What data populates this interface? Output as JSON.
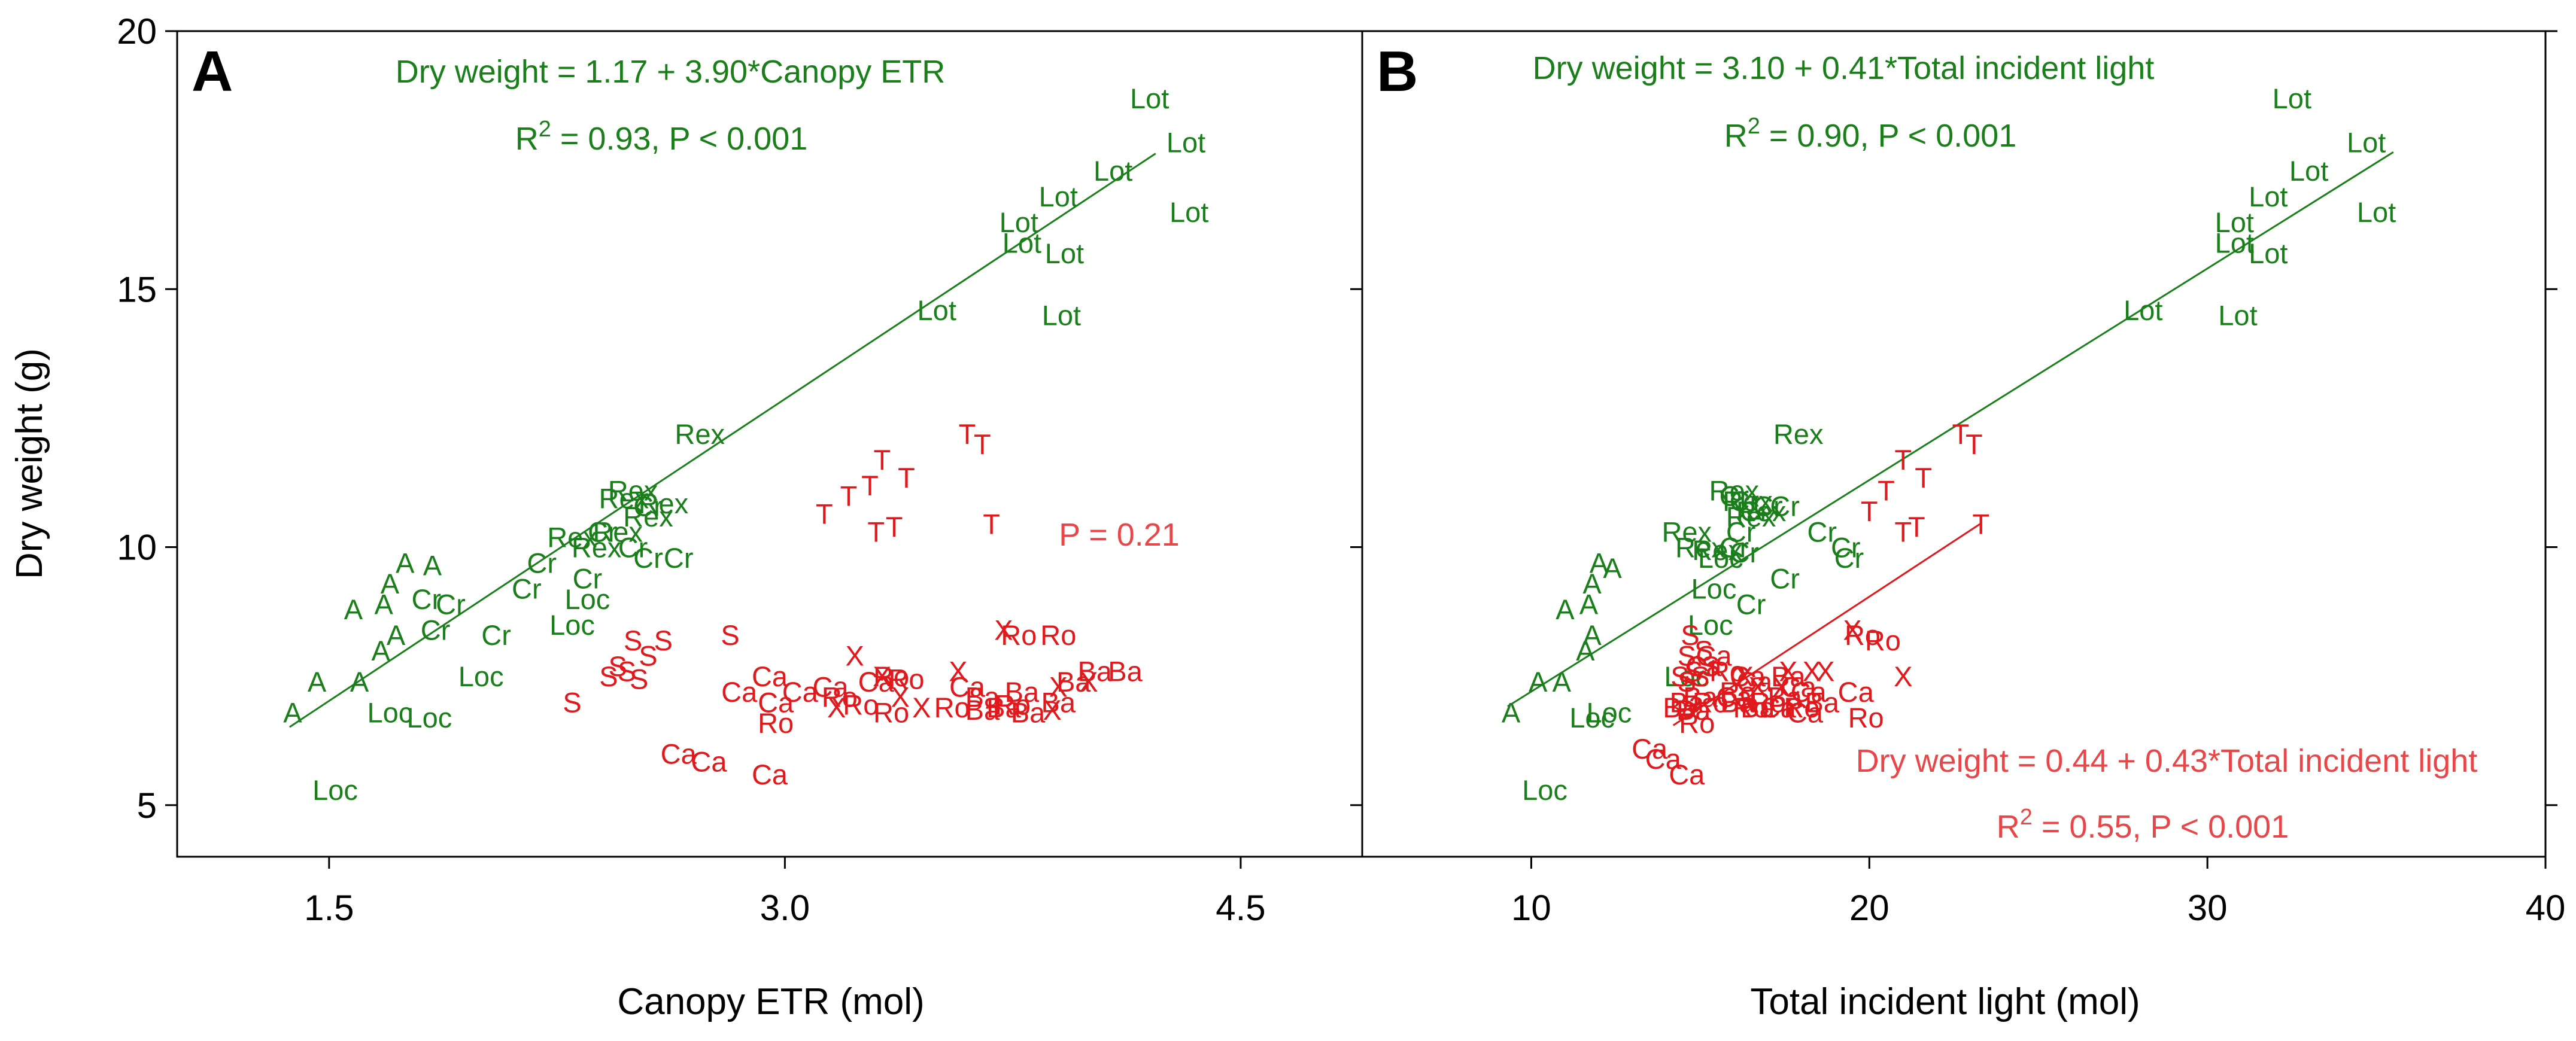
{
  "colors": {
    "green": "#1a7f1a",
    "red": "#e0191d",
    "red_label": "#e8474a",
    "axis": "#000000"
  },
  "chart_data": [
    {
      "type": "scatter",
      "panel": "A",
      "xlabel": "Canopy ETR (mol)",
      "ylabel": "Dry weight (g)",
      "xlim": [
        1.0,
        4.9
      ],
      "ylim": [
        4.0,
        20.0
      ],
      "xticks": [
        1.5,
        3.0,
        4.5
      ],
      "xtick_labels": [
        "1.5",
        "3.0",
        "4.5"
      ],
      "yticks": [
        5,
        10,
        15,
        20
      ],
      "ytick_labels": [
        "5",
        "10",
        "15",
        "20"
      ],
      "annotations": [
        {
          "id": "eqA",
          "text": "Dry weight = 1.17 + 3.90*Canopy ETR",
          "color": "green"
        },
        {
          "id": "r2A",
          "pre": "R",
          "sup": "2",
          "post": " = 0.93, P < 0.001",
          "color": "green"
        },
        {
          "id": "pA",
          "text": "P = 0.21",
          "color": "red_label"
        }
      ],
      "fits": [
        {
          "name": "green group",
          "color": "green",
          "intercept": 1.17,
          "slope": 3.9,
          "x_range": [
            1.37,
            4.22
          ]
        }
      ],
      "series": [
        {
          "name": "Lot",
          "color": "green",
          "points": [
            [
              4.2,
              18.7
            ],
            [
              4.32,
              17.85
            ],
            [
              4.08,
              17.3
            ],
            [
              3.9,
              16.8
            ],
            [
              3.77,
              16.3
            ],
            [
              4.33,
              16.5
            ],
            [
              3.78,
              15.9
            ],
            [
              3.92,
              15.7
            ],
            [
              3.5,
              14.6
            ],
            [
              3.91,
              14.5
            ]
          ]
        },
        {
          "name": "Rex",
          "color": "green",
          "points": [
            [
              2.72,
              12.2
            ],
            [
              2.5,
              11.1
            ],
            [
              2.47,
              10.95
            ],
            [
              2.6,
              10.85
            ],
            [
              2.55,
              10.6
            ],
            [
              2.45,
              10.3
            ],
            [
              2.3,
              10.2
            ],
            [
              2.38,
              10.0
            ]
          ]
        },
        {
          "name": "Cr",
          "color": "green",
          "points": [
            [
              2.55,
              10.8
            ],
            [
              2.4,
              10.3
            ],
            [
              2.5,
              10.0
            ],
            [
              2.55,
              9.8
            ],
            [
              2.65,
              9.8
            ],
            [
              2.2,
              9.7
            ],
            [
              2.35,
              9.4
            ],
            [
              2.15,
              9.2
            ],
            [
              1.82,
              9.0
            ],
            [
              1.9,
              8.9
            ],
            [
              1.85,
              8.4
            ],
            [
              2.05,
              8.3
            ]
          ]
        },
        {
          "name": "Loc",
          "color": "green",
          "points": [
            [
              2.35,
              9.0
            ],
            [
              2.3,
              8.5
            ],
            [
              2.0,
              7.5
            ],
            [
              1.7,
              6.8
            ],
            [
              1.83,
              6.7
            ],
            [
              1.52,
              5.3
            ]
          ]
        },
        {
          "name": "A",
          "color": "green",
          "points": [
            [
              1.75,
              9.7
            ],
            [
              1.84,
              9.65
            ],
            [
              1.7,
              9.3
            ],
            [
              1.68,
              8.9
            ],
            [
              1.58,
              8.8
            ],
            [
              1.72,
              8.3
            ],
            [
              1.67,
              8.0
            ],
            [
              1.46,
              7.4
            ],
            [
              1.6,
              7.4
            ],
            [
              1.38,
              6.8
            ]
          ]
        },
        {
          "name": "T",
          "color": "red",
          "points": [
            [
              3.6,
              12.2
            ],
            [
              3.65,
              12.0
            ],
            [
              3.32,
              11.7
            ],
            [
              3.4,
              11.35
            ],
            [
              3.28,
              11.2
            ],
            [
              3.21,
              11.0
            ],
            [
              3.13,
              10.65
            ],
            [
              3.3,
              10.3
            ],
            [
              3.36,
              10.4
            ],
            [
              3.68,
              10.45
            ]
          ]
        },
        {
          "name": "S",
          "color": "red",
          "points": [
            [
              2.5,
              8.2
            ],
            [
              2.6,
              8.2
            ],
            [
              2.82,
              8.3
            ],
            [
              2.55,
              7.9
            ],
            [
              2.45,
              7.7
            ],
            [
              2.48,
              7.6
            ],
            [
              2.42,
              7.5
            ],
            [
              2.52,
              7.45
            ],
            [
              2.3,
              7.0
            ]
          ]
        },
        {
          "name": "X",
          "color": "red",
          "points": [
            [
              3.72,
              8.4
            ],
            [
              3.23,
              7.9
            ],
            [
              3.57,
              7.6
            ],
            [
              3.32,
              7.5
            ],
            [
              3.38,
              7.1
            ],
            [
              3.17,
              6.9
            ],
            [
              3.45,
              6.9
            ],
            [
              3.9,
              7.3
            ],
            [
              4.0,
              7.4
            ],
            [
              3.88,
              6.85
            ]
          ]
        },
        {
          "name": "Ro",
          "color": "red",
          "points": [
            [
              3.77,
              8.3
            ],
            [
              3.9,
              8.3
            ],
            [
              3.35,
              7.5
            ],
            [
              3.4,
              7.45
            ],
            [
              3.18,
              7.1
            ],
            [
              3.25,
              6.95
            ],
            [
              3.55,
              6.9
            ],
            [
              3.75,
              6.95
            ],
            [
              3.35,
              6.8
            ],
            [
              2.97,
              6.6
            ]
          ]
        },
        {
          "name": "Ca",
          "color": "red",
          "points": [
            [
              2.95,
              7.5
            ],
            [
              2.85,
              7.2
            ],
            [
              3.05,
              7.2
            ],
            [
              3.15,
              7.3
            ],
            [
              3.3,
              7.4
            ],
            [
              3.6,
              7.3
            ],
            [
              2.97,
              7.0
            ],
            [
              2.65,
              6.0
            ],
            [
              2.75,
              5.85
            ],
            [
              2.95,
              5.6
            ]
          ]
        },
        {
          "name": "Ba",
          "color": "red",
          "points": [
            [
              4.02,
              7.6
            ],
            [
              4.12,
              7.6
            ],
            [
              3.95,
              7.4
            ],
            [
              3.65,
              7.1
            ],
            [
              3.78,
              7.2
            ],
            [
              3.9,
              7.0
            ],
            [
              3.72,
              6.9
            ],
            [
              3.65,
              6.85
            ],
            [
              3.8,
              6.8
            ]
          ]
        }
      ]
    },
    {
      "type": "scatter",
      "panel": "B",
      "xlabel": "Total incident light (mol)",
      "ylabel": "",
      "xlim": [
        5.0,
        40.0
      ],
      "ylim": [
        4.0,
        20.0
      ],
      "xticks": [
        10,
        20,
        30,
        40
      ],
      "xtick_labels": [
        "10",
        "20",
        "30",
        "40"
      ],
      "yticks": [
        5,
        10,
        15,
        20
      ],
      "ytick_labels": [],
      "annotations": [
        {
          "id": "eqB",
          "text": "Dry weight = 3.10 + 0.41*Total incident light",
          "color": "green"
        },
        {
          "id": "r2B",
          "pre": "R",
          "sup": "2",
          "post": " = 0.90, P < 0.001",
          "color": "green"
        },
        {
          "id": "eqB2",
          "text": "Dry weight = 0.44 + 0.43*Total incident light",
          "color": "red_label"
        },
        {
          "id": "r2B2",
          "pre": "R",
          "sup": "2",
          "post": " = 0.55, P < 0.001",
          "color": "red_label"
        }
      ],
      "fits": [
        {
          "name": "green group",
          "color": "green",
          "intercept": 3.1,
          "slope": 0.41,
          "x_range": [
            9.3,
            35.5
          ]
        },
        {
          "name": "red group",
          "color": "red",
          "intercept": 0.44,
          "slope": 0.43,
          "x_range": [
            14.2,
            23.3
          ]
        }
      ],
      "series": [
        {
          "name": "Lot",
          "color": "green",
          "points": [
            [
              32.5,
              18.7
            ],
            [
              34.7,
              17.85
            ],
            [
              33.0,
              17.3
            ],
            [
              31.8,
              16.8
            ],
            [
              30.8,
              16.3
            ],
            [
              35.0,
              16.5
            ],
            [
              30.8,
              15.9
            ],
            [
              31.8,
              15.7
            ],
            [
              28.1,
              14.6
            ],
            [
              30.9,
              14.5
            ]
          ]
        },
        {
          "name": "Rex",
          "color": "green",
          "points": [
            [
              17.9,
              12.2
            ],
            [
              16.0,
              11.1
            ],
            [
              16.4,
              10.9
            ],
            [
              16.8,
              10.7
            ],
            [
              16.5,
              10.6
            ],
            [
              14.6,
              10.3
            ],
            [
              15.0,
              10.0
            ],
            [
              15.5,
              9.95
            ]
          ]
        },
        {
          "name": "Cr",
          "color": "green",
          "points": [
            [
              16.0,
              11.0
            ],
            [
              16.3,
              10.9
            ],
            [
              17.0,
              10.8
            ],
            [
              17.5,
              10.8
            ],
            [
              16.6,
              10.7
            ],
            [
              16.2,
              10.3
            ],
            [
              16.0,
              10.0
            ],
            [
              16.3,
              9.9
            ],
            [
              18.6,
              10.3
            ],
            [
              19.3,
              10.0
            ],
            [
              19.4,
              9.8
            ],
            [
              17.5,
              9.4
            ],
            [
              16.5,
              8.9
            ]
          ]
        },
        {
          "name": "Loc",
          "color": "green",
          "points": [
            [
              15.6,
              9.8
            ],
            [
              15.4,
              9.2
            ],
            [
              15.3,
              8.5
            ],
            [
              14.6,
              7.5
            ],
            [
              12.3,
              6.8
            ],
            [
              11.8,
              6.7
            ],
            [
              10.4,
              5.3
            ]
          ]
        },
        {
          "name": "A",
          "color": "green",
          "points": [
            [
              12.0,
              9.7
            ],
            [
              12.4,
              9.6
            ],
            [
              11.8,
              9.3
            ],
            [
              11.7,
              8.9
            ],
            [
              11.0,
              8.8
            ],
            [
              11.8,
              8.3
            ],
            [
              11.6,
              8.0
            ],
            [
              10.2,
              7.4
            ],
            [
              10.9,
              7.4
            ],
            [
              9.4,
              6.8
            ]
          ]
        },
        {
          "name": "T",
          "color": "red",
          "points": [
            [
              22.7,
              12.2
            ],
            [
              23.1,
              12.0
            ],
            [
              21.0,
              11.7
            ],
            [
              21.6,
              11.35
            ],
            [
              20.5,
              11.1
            ],
            [
              20.0,
              10.7
            ],
            [
              21.0,
              10.3
            ],
            [
              21.4,
              10.4
            ],
            [
              23.3,
              10.45
            ]
          ]
        },
        {
          "name": "S",
          "color": "red",
          "points": [
            [
              14.7,
              8.3
            ],
            [
              14.6,
              7.9
            ],
            [
              14.8,
              7.6
            ],
            [
              15.0,
              7.5
            ],
            [
              14.4,
              7.5
            ],
            [
              14.6,
              7.4
            ],
            [
              15.1,
              8.0
            ],
            [
              15.3,
              7.7
            ]
          ]
        },
        {
          "name": "X",
          "color": "red",
          "points": [
            [
              19.5,
              8.4
            ],
            [
              21.0,
              7.5
            ],
            [
              18.3,
              7.6
            ],
            [
              16.7,
              7.3
            ],
            [
              17.4,
              7.3
            ],
            [
              17.6,
              7.6
            ],
            [
              16.3,
              7.5
            ],
            [
              18.7,
              7.6
            ]
          ]
        },
        {
          "name": "Ro",
          "color": "red",
          "points": [
            [
              19.8,
              8.3
            ],
            [
              20.4,
              8.2
            ],
            [
              15.8,
              7.6
            ],
            [
              15.3,
              7.0
            ],
            [
              16.1,
              7.2
            ],
            [
              17.0,
              7.0
            ],
            [
              16.5,
              6.9
            ],
            [
              14.9,
              6.6
            ],
            [
              18.0,
              6.9
            ],
            [
              19.9,
              6.7
            ]
          ]
        },
        {
          "name": "Ca",
          "color": "red",
          "points": [
            [
              15.4,
              7.9
            ],
            [
              15.1,
              7.7
            ],
            [
              16.4,
              7.5
            ],
            [
              16.6,
              7.4
            ],
            [
              17.9,
              7.3
            ],
            [
              16.0,
              7.1
            ],
            [
              17.3,
              6.9
            ],
            [
              18.2,
              7.2
            ],
            [
              19.6,
              7.2
            ],
            [
              18.1,
              6.8
            ],
            [
              13.5,
              6.1
            ],
            [
              13.9,
              5.9
            ],
            [
              14.6,
              5.6
            ]
          ]
        },
        {
          "name": "Ba",
          "color": "red",
          "points": [
            [
              15.0,
              7.1
            ],
            [
              14.6,
              7.0
            ],
            [
              14.4,
              6.9
            ],
            [
              14.8,
              6.85
            ],
            [
              16.1,
              7.0
            ],
            [
              16.7,
              6.9
            ],
            [
              17.5,
              7.1
            ],
            [
              18.6,
              7.0
            ],
            [
              17.6,
              7.5
            ]
          ]
        }
      ]
    }
  ]
}
